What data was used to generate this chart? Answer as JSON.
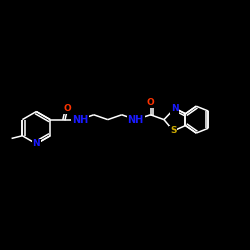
{
  "background_color": "#000000",
  "bond_color": "#ffffff",
  "atom_colors": {
    "N": "#1a1aff",
    "O": "#ff3300",
    "S": "#ccaa00",
    "H": "#ffffff"
  },
  "font_size": 6.5,
  "line_width": 1.1,
  "figsize": [
    2.5,
    2.5
  ],
  "dpi": 100
}
